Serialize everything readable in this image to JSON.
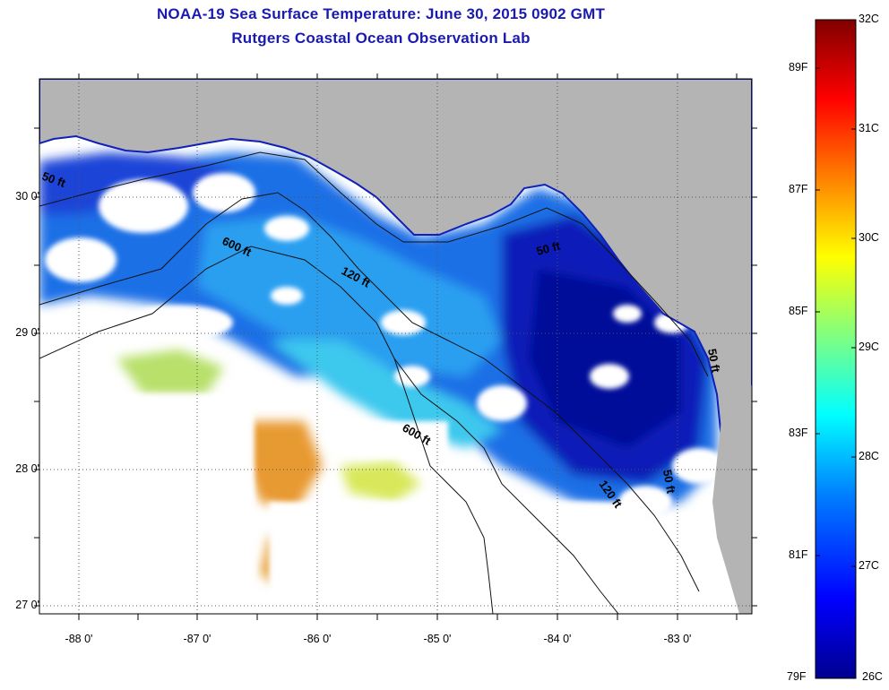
{
  "title": {
    "line1": "NOAA-19 Sea Surface Temperature:  June 30, 2015 0902 GMT",
    "line2": "Rutgers Coastal Ocean Observation Lab"
  },
  "map": {
    "lat_labels": [
      "30 0'",
      "29 0'",
      "28 0'",
      "27 0'"
    ],
    "lon_labels": [
      "-88 0'",
      "-87 0'",
      "-86 0'",
      "-85 0'",
      "-84 0'",
      "-83 0'"
    ],
    "isobaths": [
      "50 ft",
      "600 ft",
      "120 ft",
      "50 ft",
      "600 ft",
      "120 ft",
      "50 ft",
      "50 ft"
    ]
  },
  "colorbar": {
    "celsius": [
      "32C",
      "31C",
      "30C",
      "29C",
      "28C",
      "27C",
      "26C"
    ],
    "fahrenheit": [
      "89F",
      "87F",
      "85F",
      "83F",
      "81F",
      "79F"
    ],
    "colors": [
      "#00008f",
      "#0000ff",
      "#0080ff",
      "#00ffff",
      "#80ff80",
      "#ffff00",
      "#ff8000",
      "#ff0000",
      "#800000"
    ],
    "land_color": "#b4b4b4",
    "cloud_color": "#ffffff"
  }
}
